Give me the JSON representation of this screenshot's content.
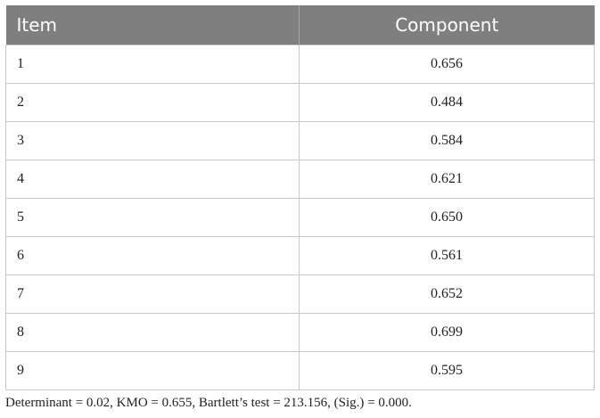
{
  "table": {
    "header": [
      "Item",
      "Component"
    ],
    "rows": [
      [
        "1",
        "0.656"
      ],
      [
        "2",
        "0.484"
      ],
      [
        "3",
        "0.584"
      ],
      [
        "4",
        "0.621"
      ],
      [
        "5",
        "0.650"
      ],
      [
        "6",
        "0.561"
      ],
      [
        "7",
        "0.652"
      ],
      [
        "8",
        "0.699"
      ],
      [
        "9",
        "0.595"
      ]
    ]
  },
  "note": "Determinant = 0.02, KMO = 0.655, Bartlett’s test = 213.156, (Sig.) = 0.000."
}
